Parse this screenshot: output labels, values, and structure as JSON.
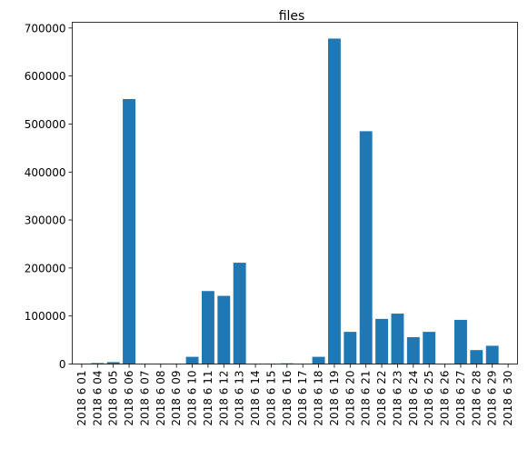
{
  "chart_data": {
    "type": "bar",
    "title": "files",
    "xlabel": "",
    "ylabel": "",
    "ylim": [
      0,
      712000
    ],
    "yticks": [
      0,
      100000,
      200000,
      300000,
      400000,
      500000,
      600000,
      700000
    ],
    "grid": false,
    "bar_color": "#1f77b4",
    "categories": [
      "2018 6 01",
      "2018 6 04",
      "2018 6 05",
      "2018 6 06",
      "2018 6 07",
      "2018 6 08",
      "2018 6 09",
      "2018 6 10",
      "2018 6 11",
      "2018 6 12",
      "2018 6 13",
      "2018 6 14",
      "2018 6 15",
      "2018 6 16",
      "2018 6 17",
      "2018 6 18",
      "2018 6 19",
      "2018 6 20",
      "2018 6 21",
      "2018 6 22",
      "2018 6 23",
      "2018 6 24",
      "2018 6 25",
      "2018 6 26",
      "2018 6 27",
      "2018 6 28",
      "2018 6 29",
      "2018 6 30"
    ],
    "values": [
      500,
      2000,
      4000,
      552000,
      500,
      500,
      500,
      15000,
      152000,
      142000,
      211000,
      500,
      500,
      1500,
      500,
      15000,
      678000,
      67000,
      485000,
      94000,
      105000,
      56000,
      67000,
      500,
      92000,
      29000,
      38000,
      500
    ]
  }
}
